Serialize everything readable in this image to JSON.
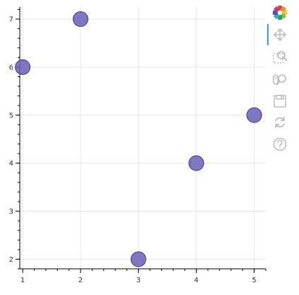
{
  "chart_data": {
    "type": "scatter",
    "title": "",
    "xlabel": "",
    "ylabel": "",
    "x": [
      1,
      2,
      3,
      4,
      5
    ],
    "y": [
      6,
      7,
      2,
      4,
      5
    ],
    "xlim": [
      0.95,
      5.2
    ],
    "ylim": [
      1.8,
      7.25
    ],
    "xticks": [
      "1",
      "2",
      "3",
      "4",
      "5"
    ],
    "yticks": [
      "2",
      "3",
      "4",
      "5",
      "6",
      "7"
    ],
    "grid": true,
    "marker_color": "#6a5fb8",
    "marker_edge_color": "#3f3596",
    "marker_opacity": 0.85
  },
  "toolbar": {
    "logo_icon": "bokeh-logo-icon",
    "tools": [
      {
        "name": "pan-tool",
        "icon": "move-arrows-icon",
        "active": true
      },
      {
        "name": "box-zoom-tool",
        "icon": "box-zoom-icon",
        "active": false
      },
      {
        "name": "wheel-zoom-tool",
        "icon": "wheel-zoom-icon",
        "active": false
      },
      {
        "name": "save-tool",
        "icon": "save-icon",
        "active": false
      },
      {
        "name": "reset-tool",
        "icon": "reset-icon",
        "active": false
      },
      {
        "name": "help-tool",
        "icon": "help-icon",
        "active": false
      }
    ],
    "active_color": "#26aae1",
    "icon_color": "#bdbdbd"
  }
}
